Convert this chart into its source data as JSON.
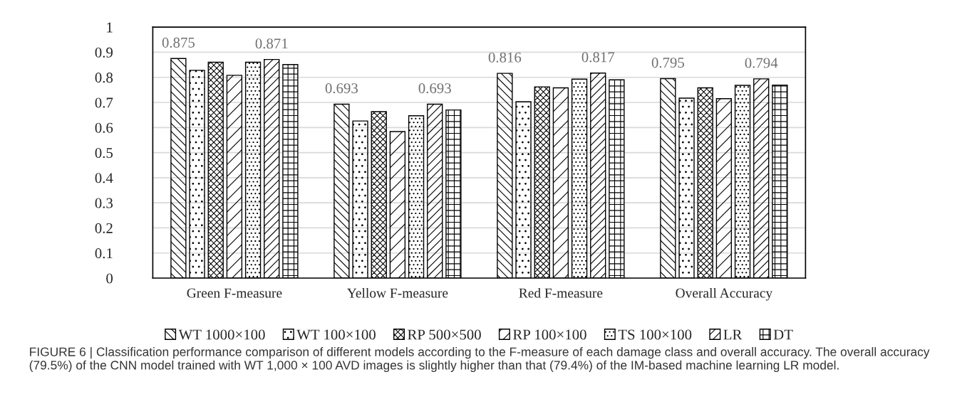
{
  "chart_data": {
    "type": "bar",
    "categories": [
      "Green F-measure",
      "Yellow F-measure",
      "Red F-measure",
      "Overall Accuracy"
    ],
    "series": [
      {
        "name": "WT 1000×100",
        "color": "#000000",
        "values": [
          0.875,
          0.693,
          0.816,
          0.795
        ],
        "value_labels": [
          "0.875",
          "0.693",
          "0.816",
          "0.795"
        ]
      },
      {
        "name": "WT 100×100",
        "color": "#000000",
        "values": [
          0.828,
          0.626,
          0.703,
          0.717
        ]
      },
      {
        "name": "RP 500×500",
        "color": "#000000",
        "values": [
          0.86,
          0.663,
          0.762,
          0.758
        ]
      },
      {
        "name": "RP 100×100",
        "color": "#000000",
        "values": [
          0.808,
          0.584,
          0.758,
          0.715
        ]
      },
      {
        "name": "TS 100×100",
        "color": "#000000",
        "values": [
          0.86,
          0.647,
          0.793,
          0.768
        ]
      },
      {
        "name": "LR",
        "color": "#000000",
        "values": [
          0.871,
          0.693,
          0.817,
          0.794
        ],
        "value_labels": [
          "0.871",
          "0.693",
          "0.817",
          "0.794"
        ]
      },
      {
        "name": "DT",
        "color": "#000000",
        "values": [
          0.851,
          0.67,
          0.79,
          0.769
        ]
      }
    ],
    "ylim": [
      0,
      1
    ],
    "yticks": [
      0,
      0.1,
      0.2,
      0.3,
      0.4,
      0.5,
      0.6,
      0.7,
      0.8,
      0.9,
      1
    ],
    "grid": "y",
    "legend": "bottom",
    "annotations": [
      "FIGURE 6 | Classification performance comparison of different models according to the F-measure of each damage class and overall accuracy. The overall accuracy (79.5%) of the CNN model trained with WT 1,000 × 100 AVD images is slightly higher than that (79.4%) of the IM-based machine learning LR model."
    ]
  }
}
